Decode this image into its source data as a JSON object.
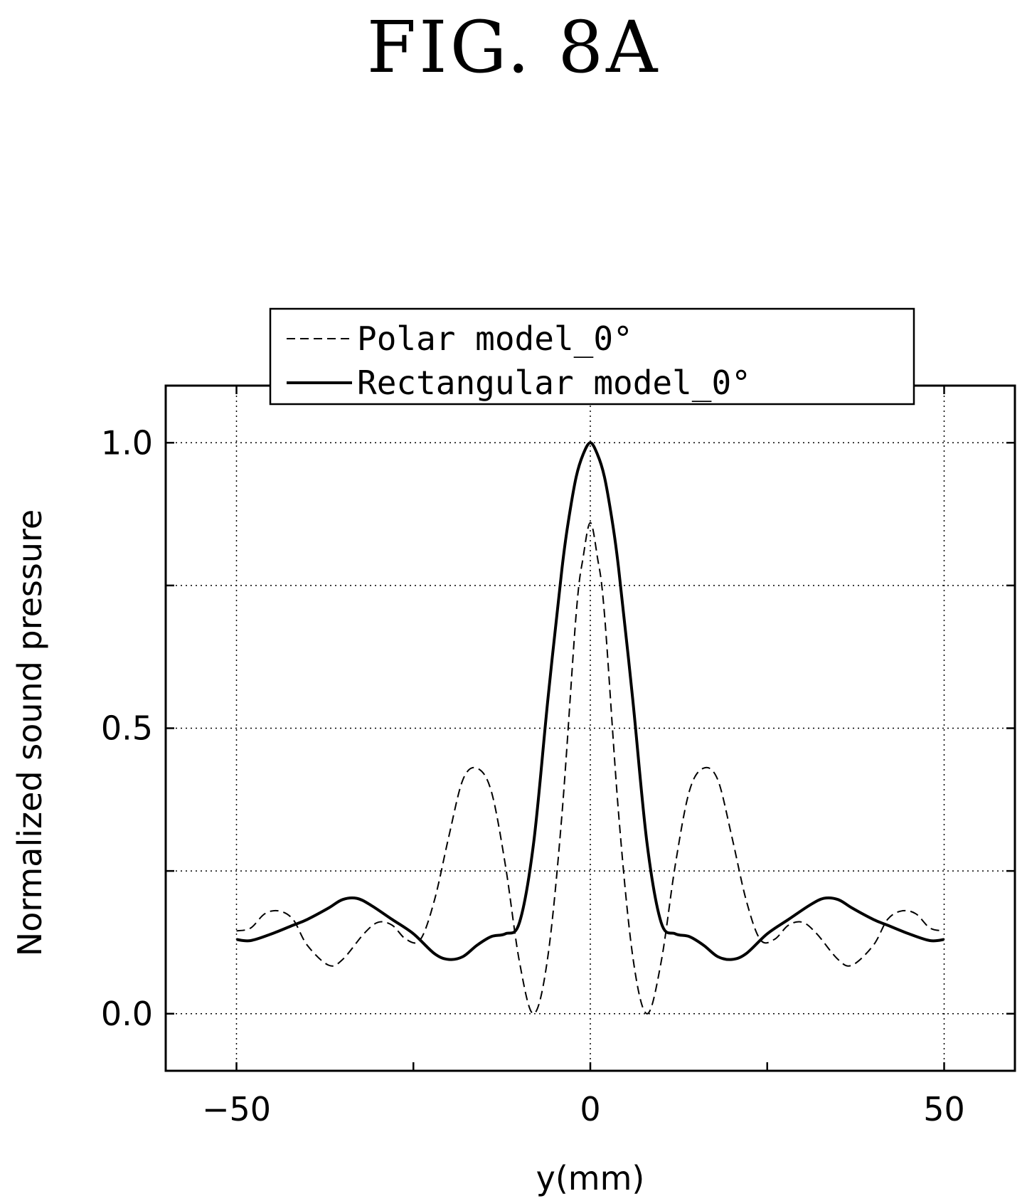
{
  "figure": {
    "title": "FIG. 8A"
  },
  "chart_data": {
    "type": "line",
    "xlabel": "y(mm)",
    "ylabel": "Normalized sound pressure",
    "xlim": [
      -60,
      60
    ],
    "ylim": [
      -0.1,
      1.1
    ],
    "x_ticks": [
      -50,
      0,
      50
    ],
    "x_tick_labels": [
      "−50",
      "0",
      "50"
    ],
    "x_minor_ticks": [
      -25,
      25
    ],
    "y_ticks": [
      0.0,
      0.5,
      1.0
    ],
    "y_tick_labels": [
      "0.0",
      "0.5",
      "1.0"
    ],
    "y_minor_ticks": [
      0.25,
      0.75
    ],
    "grid": true,
    "legend_position": "top",
    "colors": {
      "line": "#000000",
      "grid": "#000000"
    },
    "series": [
      {
        "name": "Polar model_0°",
        "style": "dashed",
        "x": [
          -50,
          -48,
          -46,
          -44,
          -42,
          -40,
          -37,
          -35,
          -32,
          -30,
          -28,
          -26,
          -24,
          -22,
          -20,
          -18,
          -16,
          -14,
          -12,
          -10,
          -8,
          -6,
          -4,
          -2,
          -1,
          0,
          1,
          2,
          4,
          6,
          8,
          10,
          12,
          14,
          16,
          18,
          20,
          22,
          24,
          26,
          28,
          30,
          32,
          35,
          37,
          40,
          42,
          44,
          46,
          48,
          50
        ],
        "values": [
          0.145,
          0.15,
          0.175,
          0.18,
          0.165,
          0.12,
          0.085,
          0.095,
          0.14,
          0.16,
          0.155,
          0.13,
          0.13,
          0.2,
          0.31,
          0.41,
          0.43,
          0.39,
          0.26,
          0.09,
          0.0,
          0.1,
          0.35,
          0.7,
          0.8,
          0.86,
          0.8,
          0.7,
          0.35,
          0.1,
          0.0,
          0.09,
          0.26,
          0.39,
          0.43,
          0.41,
          0.31,
          0.2,
          0.13,
          0.13,
          0.155,
          0.16,
          0.14,
          0.095,
          0.085,
          0.12,
          0.165,
          0.18,
          0.175,
          0.15,
          0.145
        ]
      },
      {
        "name": "Rectangular model_0°",
        "style": "solid",
        "x": [
          -50,
          -48,
          -45,
          -42,
          -40,
          -37,
          -35,
          -33,
          -31,
          -28,
          -25,
          -22,
          -20,
          -18,
          -16,
          -14,
          -12,
          -10,
          -8,
          -6,
          -4,
          -3,
          -2,
          -1,
          0,
          1,
          2,
          3,
          4,
          6,
          8,
          10,
          12,
          14,
          16,
          18,
          20,
          22,
          25,
          28,
          31,
          33,
          35,
          37,
          40,
          42,
          45,
          48,
          50
        ],
        "values": [
          0.13,
          0.128,
          0.14,
          0.155,
          0.165,
          0.185,
          0.2,
          0.202,
          0.19,
          0.165,
          0.14,
          0.105,
          0.095,
          0.1,
          0.12,
          0.135,
          0.14,
          0.16,
          0.3,
          0.55,
          0.78,
          0.87,
          0.94,
          0.98,
          1.0,
          0.98,
          0.94,
          0.87,
          0.78,
          0.55,
          0.3,
          0.16,
          0.14,
          0.135,
          0.12,
          0.1,
          0.095,
          0.105,
          0.14,
          0.165,
          0.19,
          0.202,
          0.2,
          0.185,
          0.165,
          0.155,
          0.14,
          0.128,
          0.13
        ]
      }
    ]
  }
}
